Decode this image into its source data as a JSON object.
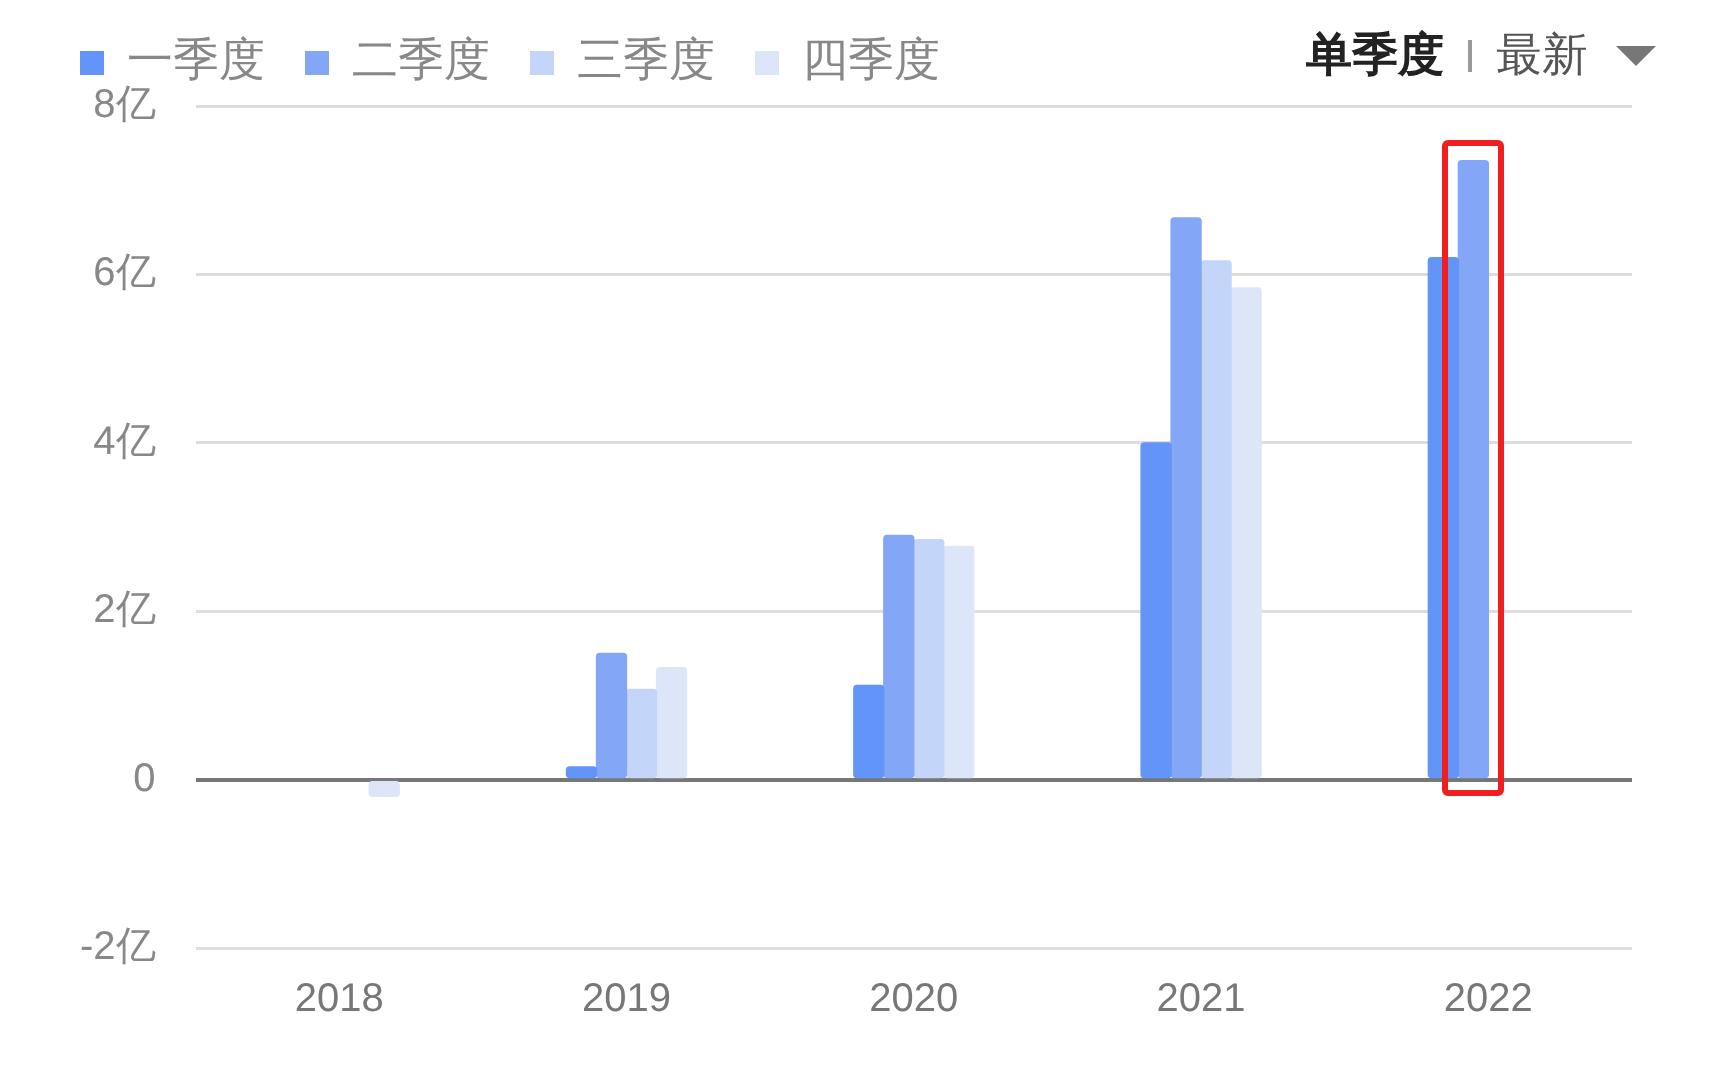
{
  "chart_data": {
    "type": "bar",
    "categories": [
      "2018",
      "2019",
      "2020",
      "2021",
      "2022"
    ],
    "series": [
      {
        "name": "一季度",
        "color": "#6394f8",
        "values": [
          null,
          0.15,
          1.12,
          4.0,
          6.2
        ]
      },
      {
        "name": "二季度",
        "color": "#83a7f6",
        "values": [
          null,
          1.5,
          2.9,
          6.67,
          7.35
        ]
      },
      {
        "name": "三季度",
        "color": "#c3d5f9",
        "values": [
          null,
          1.07,
          2.85,
          6.16,
          null
        ]
      },
      {
        "name": "四季度",
        "color": "#dde6f9",
        "values": [
          -0.2,
          1.33,
          2.77,
          5.84,
          null
        ]
      }
    ],
    "ylim": [
      -2,
      8
    ],
    "yticks": [
      {
        "value": -2,
        "label": "-2亿"
      },
      {
        "value": 0,
        "label": "0"
      },
      {
        "value": 2,
        "label": "2亿"
      },
      {
        "value": 4,
        "label": "4亿"
      },
      {
        "value": 6,
        "label": "6亿"
      },
      {
        "value": 8,
        "label": "8亿"
      }
    ],
    "grid": "y",
    "legend": "top left",
    "annotations": [
      "单季度",
      "最新"
    ]
  }
}
